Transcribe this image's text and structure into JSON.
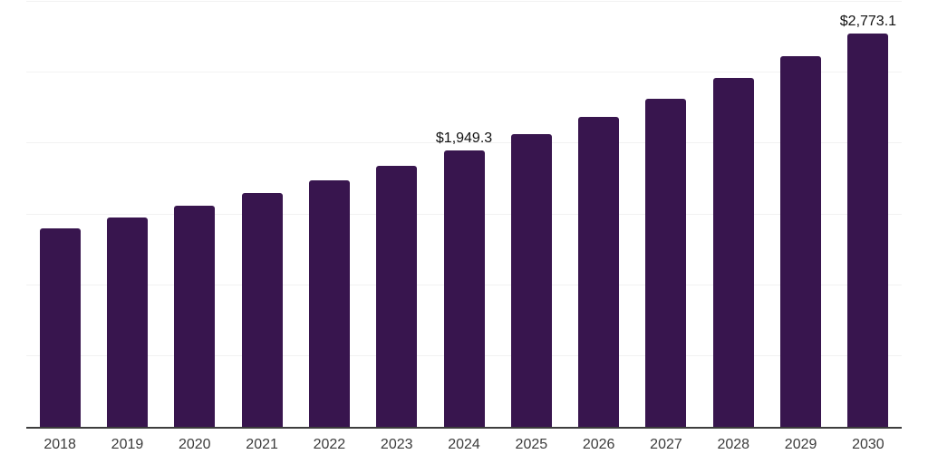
{
  "chart_data": {
    "type": "bar",
    "title": "",
    "xlabel": "",
    "ylabel": "",
    "categories": [
      "2018",
      "2019",
      "2020",
      "2021",
      "2022",
      "2023",
      "2024",
      "2025",
      "2026",
      "2027",
      "2028",
      "2029",
      "2030"
    ],
    "values": [
      1403,
      1479,
      1559,
      1652,
      1741,
      1844,
      1949.3,
      2064,
      2185,
      2316,
      2463,
      2617,
      2773.1
    ],
    "labeled_points": [
      {
        "category": "2024",
        "label": "$1,949.3"
      },
      {
        "category": "2030",
        "label": "$2,773.1"
      }
    ],
    "ylim": [
      0,
      3000
    ],
    "gridline_step": 500,
    "grid": "horizontal gridlines only, no y-axis tick labels",
    "legend": "none",
    "colors": {
      "bar": "#38154E",
      "gridline": "#f2f2f2",
      "axis_line": "#3d3d3d",
      "tick_label": "#3b3b3b",
      "data_label": "#111111",
      "background": "#ffffff"
    }
  }
}
